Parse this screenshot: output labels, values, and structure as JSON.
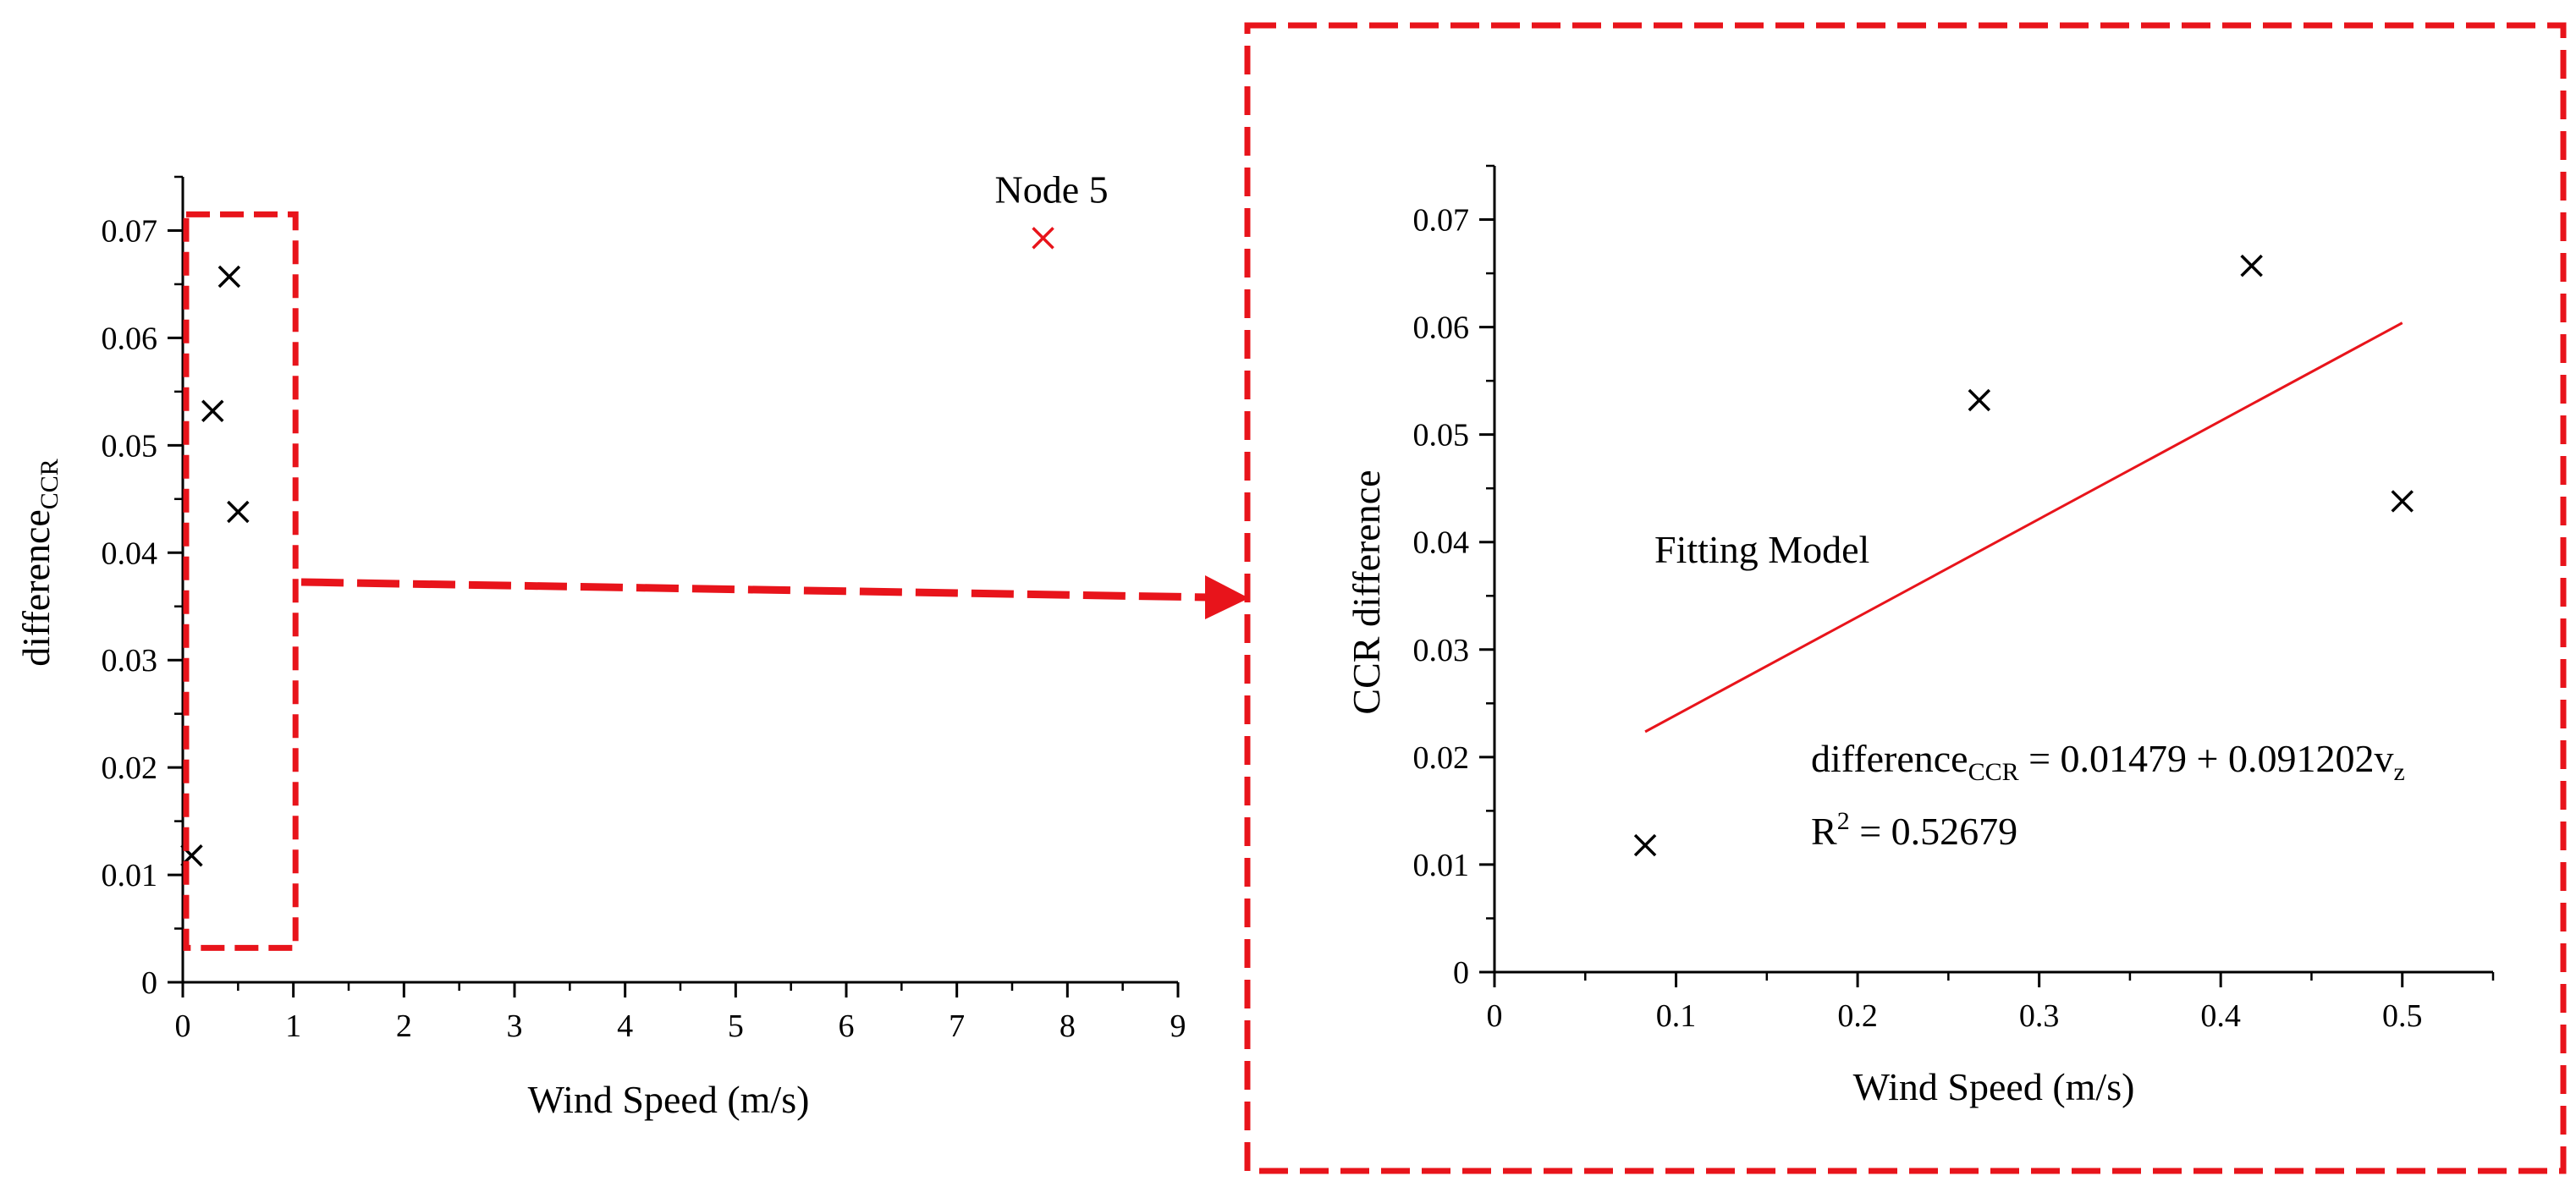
{
  "chart_data": [
    {
      "id": "overview",
      "type": "scatter",
      "xlabel": "Wind Speed (m/s)",
      "ylabel_main": "difference",
      "ylabel_sub": "CCR",
      "xlim": [
        0,
        9
      ],
      "ylim": [
        0,
        0.075
      ],
      "xticks": [
        0,
        1,
        2,
        3,
        4,
        5,
        6,
        7,
        8,
        9
      ],
      "yticks": [
        0,
        0.01,
        0.02,
        0.03,
        0.04,
        0.05,
        0.06,
        0.07
      ],
      "ytick_labels": [
        "0",
        "0.01",
        "0.02",
        "0.03",
        "0.04",
        "0.05",
        "0.06",
        "0.07"
      ],
      "points": [
        {
          "x": 0.08,
          "y": 0.0118
        },
        {
          "x": 0.27,
          "y": 0.0532
        },
        {
          "x": 0.42,
          "y": 0.0657
        },
        {
          "x": 0.5,
          "y": 0.0438
        }
      ],
      "outlier": {
        "x": 7.78,
        "y": 0.0693,
        "label": "Node 5",
        "color": "#e8141b"
      },
      "zoom_box": {
        "x": [
          0,
          1.05
        ],
        "y": [
          0.0032,
          0.0715
        ]
      }
    },
    {
      "id": "zoomed",
      "type": "scatter",
      "xlabel": "Wind Speed (m/s)",
      "ylabel": "CCR difference",
      "xlim": [
        0,
        0.55
      ],
      "ylim": [
        0,
        0.075
      ],
      "xticks": [
        0,
        0.1,
        0.2,
        0.3,
        0.4,
        0.5
      ],
      "xtick_labels": [
        "0",
        "0.1",
        "0.2",
        "0.3",
        "0.4",
        "0.5"
      ],
      "yticks": [
        0,
        0.01,
        0.02,
        0.03,
        0.04,
        0.05,
        0.06,
        0.07
      ],
      "ytick_labels": [
        "0",
        "0.01",
        "0.02",
        "0.03",
        "0.04",
        "0.05",
        "0.06",
        "0.07"
      ],
      "points": [
        {
          "x": 0.083,
          "y": 0.0118
        },
        {
          "x": 0.267,
          "y": 0.0532
        },
        {
          "x": 0.417,
          "y": 0.0657
        },
        {
          "x": 0.5,
          "y": 0.0438
        }
      ],
      "fit_line": {
        "x": [
          0.083,
          0.5
        ],
        "intercept": 0.01479,
        "slope": 0.091202,
        "color": "#e8141b"
      },
      "annotation_label": "Fitting Model",
      "equation": {
        "lhs": "difference",
        "lhs_sub": "CCR",
        "rhs": " = 0.01479 + 0.091202v",
        "rhs_sub": "z"
      },
      "r_squared": {
        "symbol": "R",
        "power": "2",
        "value": " = 0.52679"
      }
    }
  ],
  "colors": {
    "accent": "#e8141b",
    "axis": "#000000"
  }
}
